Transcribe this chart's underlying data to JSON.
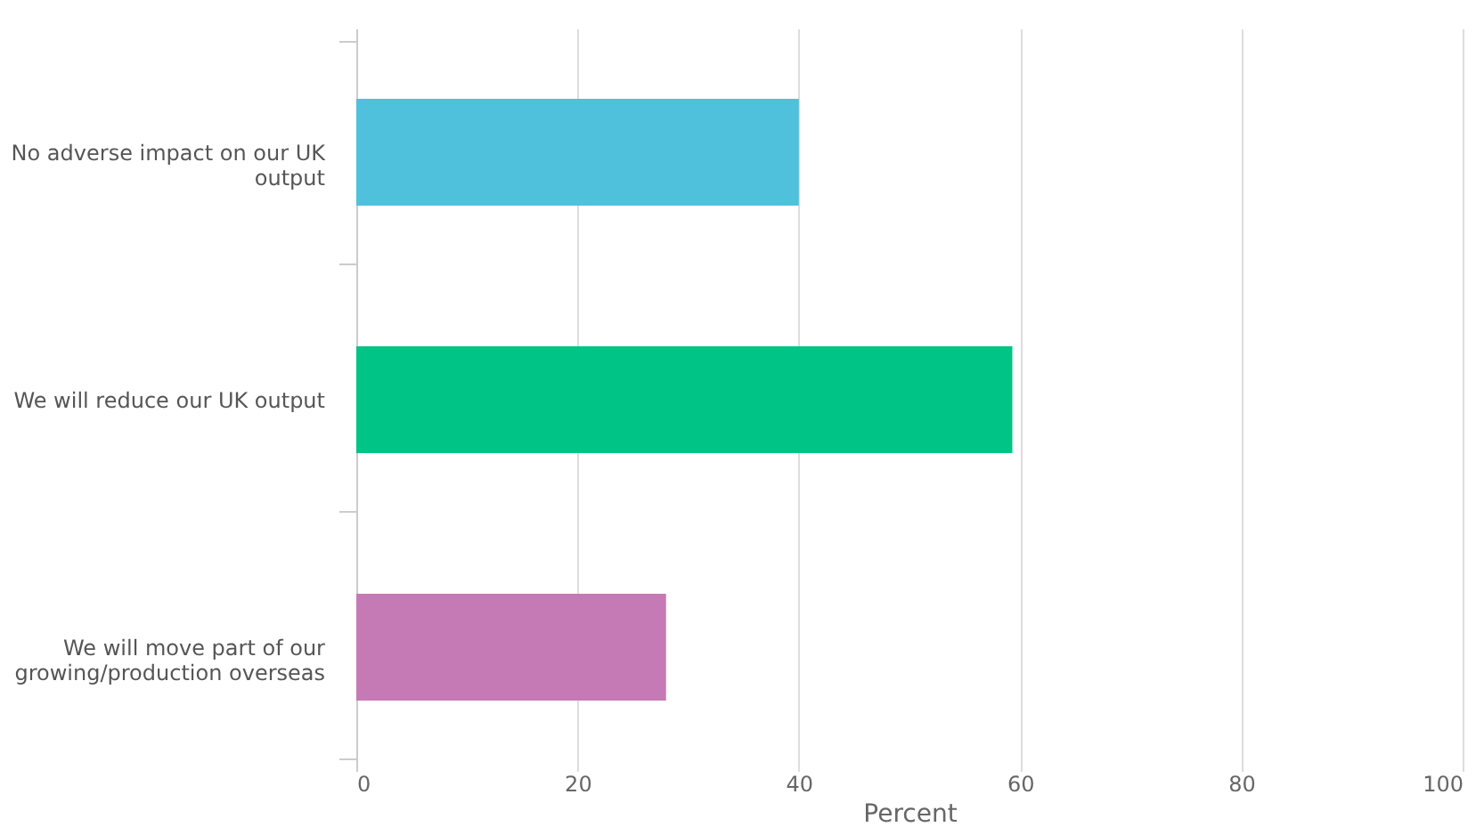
{
  "chart_data": {
    "type": "bar",
    "orientation": "horizontal",
    "categories": [
      "No adverse impact on our UK output",
      "We will reduce our UK output",
      "We will move part of our growing/production overseas"
    ],
    "values": [
      40,
      59.3,
      28
    ],
    "colors": [
      "#4fc1dd",
      "#00c386",
      "#c67ab5"
    ],
    "xlabel": "Percent",
    "xlim": [
      0,
      100
    ],
    "xticks": [
      0,
      20,
      40,
      60,
      80,
      100
    ],
    "grid": "x"
  }
}
